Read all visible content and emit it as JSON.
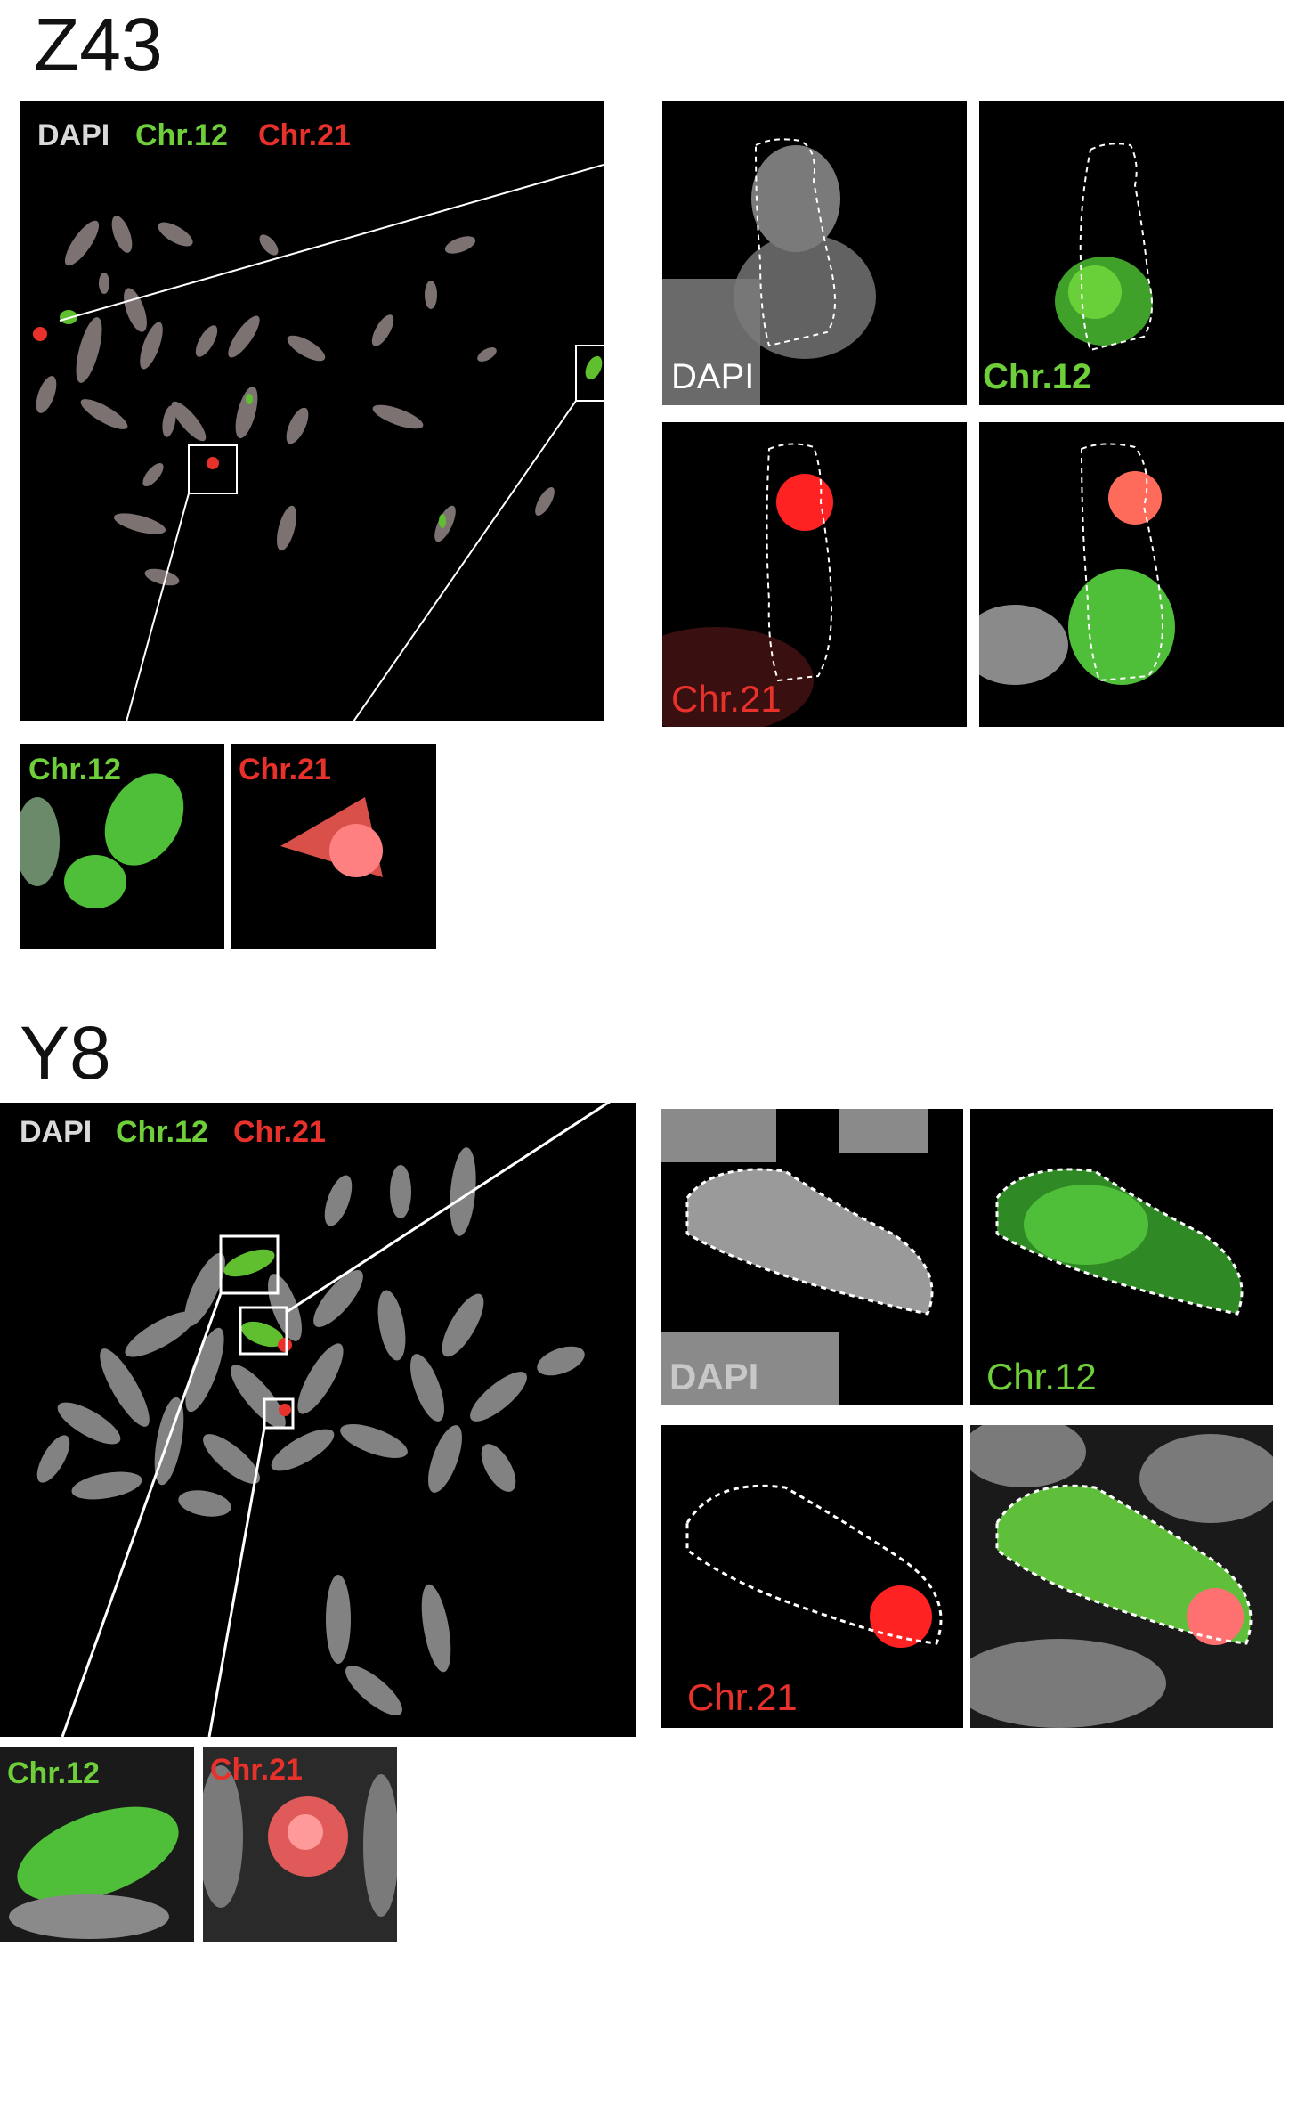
{
  "panels": [
    {
      "title": "Z43",
      "overview_legend": [
        "DAPI",
        "Chr.12",
        "Chr.21"
      ],
      "zoom_labels": [
        "DAPI",
        "Chr.12",
        "Chr.21"
      ],
      "inset_labels": [
        "Chr.12",
        "Chr.21"
      ]
    },
    {
      "title": "Y8",
      "overview_legend": [
        "DAPI",
        "Chr.12",
        "Chr.21"
      ],
      "zoom_labels": [
        "DAPI",
        "Chr.12",
        "Chr.21"
      ],
      "inset_labels": [
        "Chr.12",
        "Chr.21"
      ]
    }
  ],
  "colors": {
    "dapi": "#d9d9d9",
    "chr12": "#6fcf3a",
    "chr21": "#e8312b",
    "background": "#000000"
  }
}
